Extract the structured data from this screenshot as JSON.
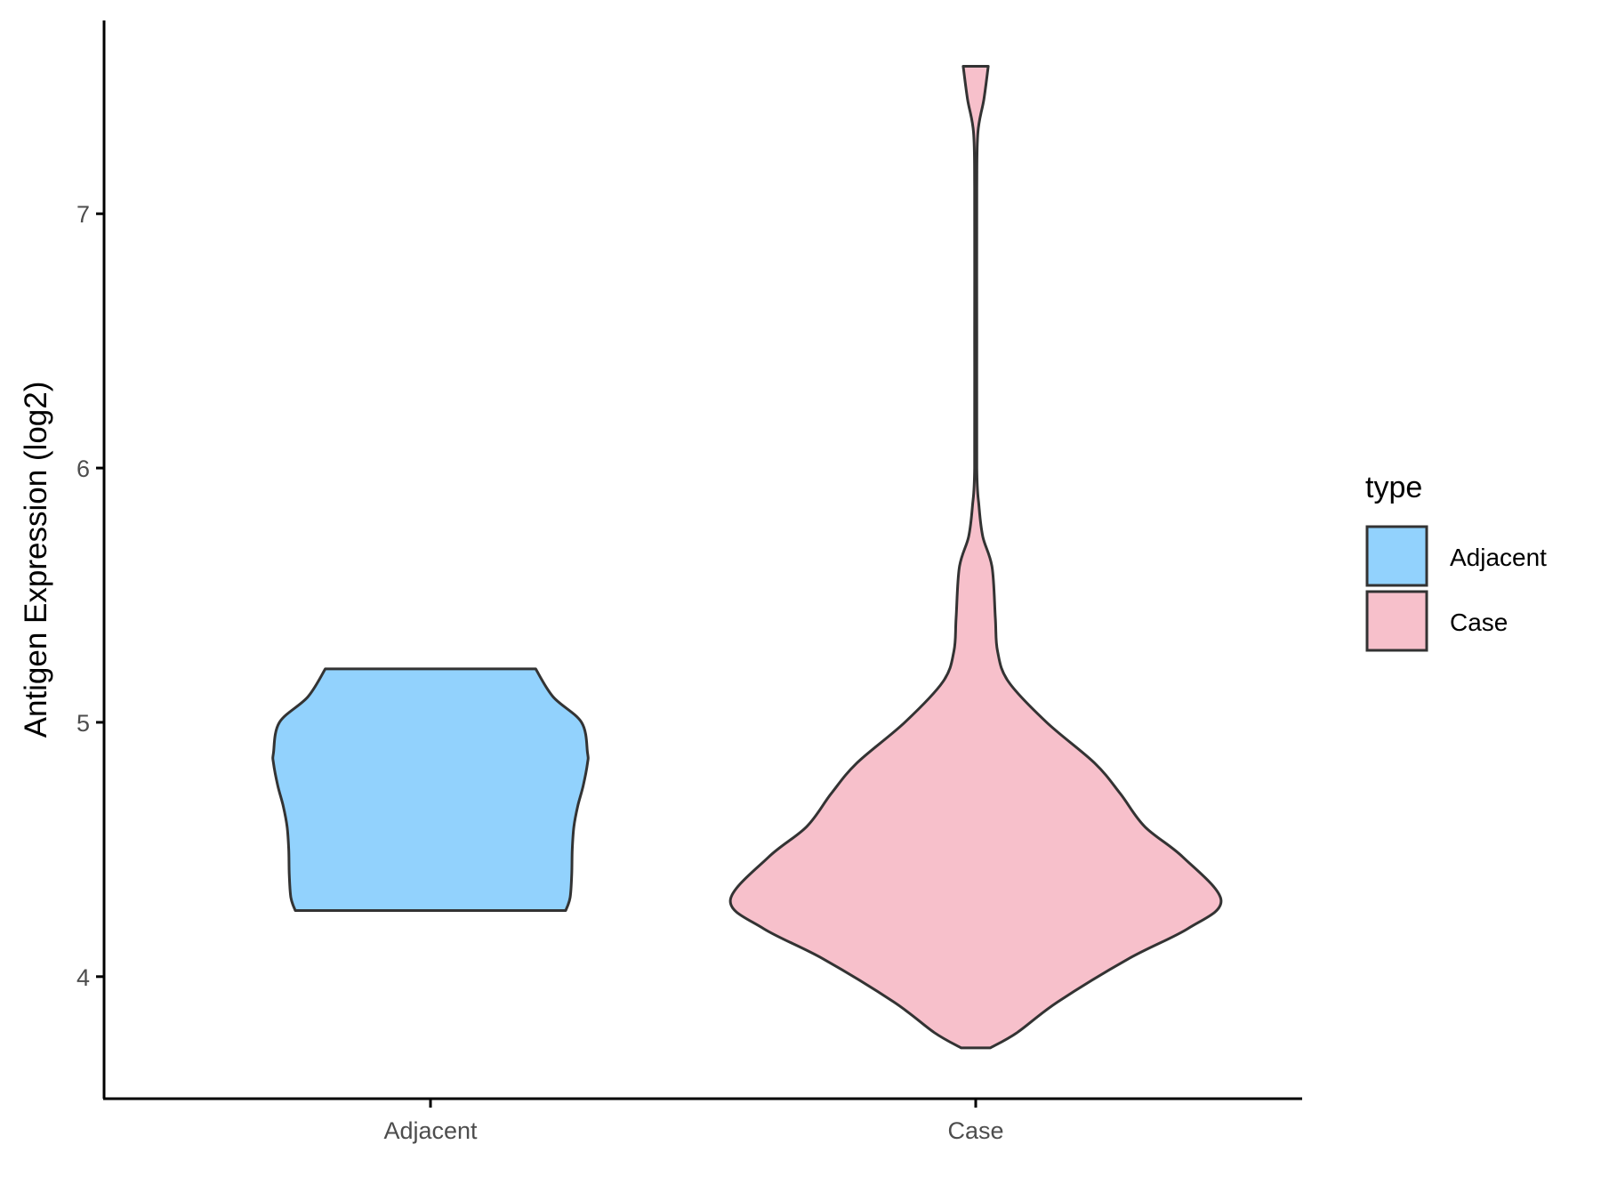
{
  "chart_data": {
    "type": "violin",
    "title": "",
    "xlabel": "",
    "ylabel": "Antigen Expression (log2)",
    "ylim": [
      3.52,
      7.76
    ],
    "yticks": [
      4,
      5,
      6,
      7
    ],
    "categories": [
      "Adjacent",
      "Case"
    ],
    "grid": false,
    "legend": {
      "title": "type",
      "position": "right",
      "entries": [
        "Adjacent",
        "Case"
      ]
    },
    "colors": {
      "Adjacent": "#92D2FD",
      "Case": "#F7C0CB",
      "outline": "#333333"
    },
    "series": [
      {
        "name": "Adjacent",
        "range": [
          4.26,
          5.21
        ],
        "density_profile": [
          [
            5.21,
            0.193
          ],
          [
            5.1,
            0.225
          ],
          [
            5.0,
            0.277
          ],
          [
            4.88,
            0.288
          ],
          [
            4.84,
            0.288
          ],
          [
            4.75,
            0.28
          ],
          [
            4.67,
            0.27
          ],
          [
            4.59,
            0.263
          ],
          [
            4.5,
            0.26
          ],
          [
            4.4,
            0.259
          ],
          [
            4.31,
            0.256
          ],
          [
            4.26,
            0.248
          ]
        ]
      },
      {
        "name": "Case",
        "range": [
          3.72,
          7.58
        ],
        "density_profile": [
          [
            7.58,
            0.023
          ],
          [
            7.45,
            0.015
          ],
          [
            7.32,
            0.004
          ],
          [
            7.1,
            0.002
          ],
          [
            6.5,
            0.002
          ],
          [
            6.0,
            0.002
          ],
          [
            5.85,
            0.006
          ],
          [
            5.73,
            0.013
          ],
          [
            5.61,
            0.03
          ],
          [
            5.41,
            0.036
          ],
          [
            5.28,
            0.04
          ],
          [
            5.16,
            0.06
          ],
          [
            5.0,
            0.13
          ],
          [
            4.84,
            0.218
          ],
          [
            4.72,
            0.265
          ],
          [
            4.59,
            0.31
          ],
          [
            4.47,
            0.38
          ],
          [
            4.3,
            0.45
          ],
          [
            4.19,
            0.39
          ],
          [
            4.07,
            0.28
          ],
          [
            3.9,
            0.15
          ],
          [
            3.78,
            0.076
          ],
          [
            3.72,
            0.027
          ]
        ]
      }
    ]
  }
}
